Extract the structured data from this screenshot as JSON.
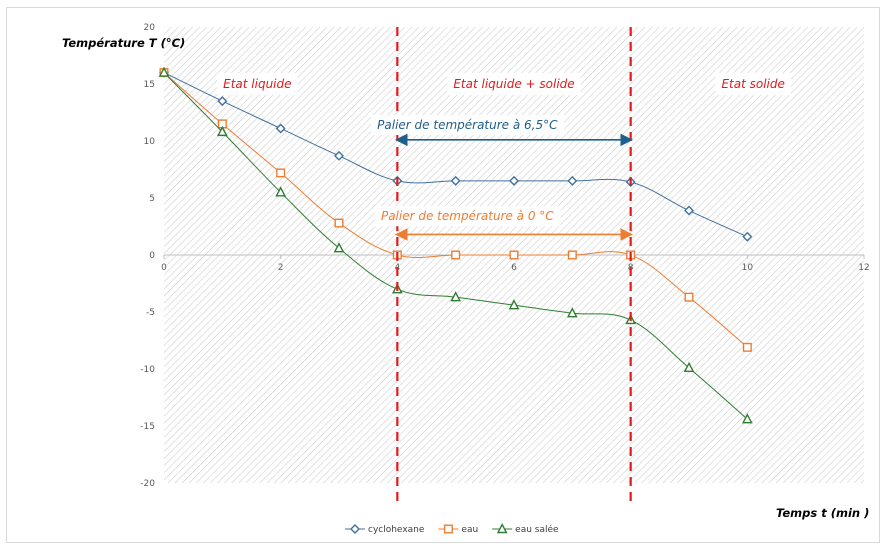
{
  "chart_data": {
    "type": "scatter",
    "xlabel": "Temps t (min )",
    "ylabel": "Température T (°C)",
    "xlim": [
      0,
      12
    ],
    "ylim": [
      -20,
      20
    ],
    "x_ticks": [
      "0",
      "2",
      "4",
      "6",
      "8",
      "10",
      "12"
    ],
    "y_ticks": [
      "20",
      "15",
      "10",
      "5",
      "0",
      "-5",
      "-10",
      "-15",
      "-20"
    ],
    "grid": false,
    "background": "hatched",
    "legend_position": "bottom",
    "series": [
      {
        "name": "cyclohexane",
        "color": "#41719c",
        "marker": "diamond",
        "x": [
          0,
          1,
          2,
          3,
          4,
          5,
          6,
          7,
          8,
          9,
          10
        ],
        "y": [
          16,
          13.5,
          11.1,
          8.7,
          6.5,
          6.5,
          6.5,
          6.5,
          6.4,
          3.9,
          1.6
        ]
      },
      {
        "name": "eau",
        "color": "#ed7d31",
        "marker": "square",
        "x": [
          0,
          1,
          2,
          3,
          4,
          5,
          6,
          7,
          8,
          9,
          10
        ],
        "y": [
          16,
          11.5,
          7.2,
          2.8,
          0,
          0,
          0,
          0,
          0,
          -3.7,
          -8.1
        ]
      },
      {
        "name": "eau salée",
        "color": "#2e7d32",
        "marker": "triangle",
        "x": [
          0,
          1,
          2,
          3,
          4,
          5,
          6,
          7,
          8,
          9,
          10
        ],
        "y": [
          16,
          10.8,
          5.5,
          0.6,
          -3,
          -3.7,
          -4.4,
          -5.1,
          -5.7,
          -9.9,
          -14.4
        ]
      }
    ],
    "vertical_lines": [
      {
        "x": 4,
        "color": "#e31a1c",
        "style": "dashed"
      },
      {
        "x": 8,
        "color": "#e31a1c",
        "style": "dashed"
      }
    ],
    "regions": [
      {
        "label": "Etat liquide",
        "x": 1.6,
        "y": 15,
        "color": "#e31a1c"
      },
      {
        "label": "Etat liquide + solide",
        "x": 6,
        "y": 15,
        "color": "#e31a1c"
      },
      {
        "label": "Etat solide",
        "x": 10.1,
        "y": 15,
        "color": "#e31a1c"
      }
    ],
    "annotations": [
      {
        "label": "Palier de température à 6,5°C",
        "x": 5.2,
        "y": 11.4,
        "color": "#1f5f8b",
        "arrow": {
          "x1": 4,
          "x2": 8,
          "y": 10.1,
          "color": "#1f5f8b"
        }
      },
      {
        "label": "Palier de température à 0 °C",
        "x": 5.2,
        "y": 3.4,
        "color": "#ed7d31",
        "arrow": {
          "x1": 4,
          "x2": 8,
          "y": 1.8,
          "color": "#ed7d31"
        }
      }
    ]
  }
}
